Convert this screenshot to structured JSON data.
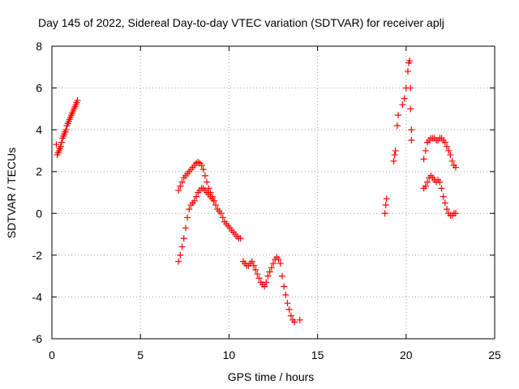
{
  "chart_data": {
    "type": "scatter",
    "title": "Day 145 of 2022, Sidereal Day-to-day VTEC variation (SDTVAR) for receiver aplj",
    "xlabel": "GPS time / hours",
    "ylabel": "SDTVAR / TECUs",
    "xlim": [
      0,
      25
    ],
    "ylim": [
      -6,
      8
    ],
    "xticks": [
      0,
      5,
      10,
      15,
      20,
      25
    ],
    "yticks": [
      -6,
      -4,
      -2,
      0,
      2,
      4,
      6,
      8
    ],
    "xtick_labels": [
      "0",
      "5",
      "10",
      "15",
      "20",
      "25"
    ],
    "ytick_labels": [
      "-6",
      "-4",
      "-2",
      "0",
      "2",
      "4",
      "6",
      "8"
    ],
    "grid": true,
    "marker": "+",
    "color": "#ff0000",
    "series": [
      {
        "name": "SDTVAR",
        "x": [
          0.25,
          0.3,
          0.35,
          0.4,
          0.45,
          0.5,
          0.55,
          0.6,
          0.65,
          0.7,
          0.75,
          0.8,
          0.85,
          0.9,
          0.95,
          1.0,
          1.05,
          1.1,
          1.15,
          1.2,
          1.25,
          1.3,
          1.35,
          1.4,
          1.45,
          7.15,
          7.25,
          7.35,
          7.45,
          7.55,
          7.65,
          7.75,
          7.85,
          7.95,
          8.05,
          8.15,
          8.25,
          8.35,
          8.45,
          8.55,
          8.65,
          8.75,
          8.85,
          8.95,
          9.05,
          9.15,
          9.25,
          9.35,
          9.45,
          9.55,
          9.65,
          9.75,
          9.85,
          9.95,
          10.05,
          10.15,
          10.25,
          10.35,
          10.45,
          10.55,
          10.65,
          7.15,
          7.25,
          7.35,
          7.45,
          7.55,
          7.65,
          7.75,
          7.85,
          7.95,
          8.05,
          8.15,
          8.25,
          8.35,
          8.45,
          8.55,
          8.65,
          8.75,
          8.85,
          8.95,
          9.05,
          9.15,
          10.8,
          10.9,
          11.0,
          11.1,
          11.2,
          11.3,
          11.4,
          11.5,
          11.6,
          11.7,
          11.8,
          11.9,
          12.0,
          12.1,
          12.2,
          12.3,
          12.4,
          12.5,
          12.6,
          12.7,
          12.8,
          12.9,
          13.0,
          13.1,
          13.2,
          13.3,
          13.4,
          13.5,
          13.6,
          13.7,
          14.0,
          18.8,
          18.85,
          18.9,
          19.3,
          19.35,
          19.4,
          19.5,
          19.55,
          19.8,
          19.9,
          20.0,
          20.1,
          20.15,
          20.2,
          20.25,
          20.3,
          20.25,
          20.3,
          21.0,
          21.1,
          21.2,
          21.3,
          21.4,
          21.5,
          21.6,
          21.7,
          21.8,
          21.9,
          22.0,
          22.1,
          22.2,
          22.3,
          22.4,
          22.5,
          22.6,
          22.7,
          22.8,
          21.0,
          21.1,
          21.2,
          21.3,
          21.4,
          21.5,
          21.6,
          21.7,
          21.8,
          21.9,
          22.0,
          22.1,
          22.2,
          22.3,
          22.4,
          22.5,
          22.6,
          22.7,
          22.8
        ],
        "y": [
          3.3,
          2.8,
          2.9,
          3.0,
          3.1,
          3.2,
          3.4,
          3.6,
          3.7,
          3.8,
          3.9,
          4.0,
          4.2,
          4.3,
          4.4,
          4.5,
          4.6,
          4.7,
          4.8,
          4.9,
          5.0,
          5.1,
          5.2,
          5.3,
          5.4,
          1.1,
          1.3,
          1.5,
          1.7,
          1.8,
          1.9,
          2.0,
          2.1,
          2.2,
          2.3,
          2.4,
          2.45,
          2.4,
          2.3,
          2.1,
          1.8,
          1.5,
          1.2,
          1.0,
          0.8,
          0.6,
          0.4,
          0.2,
          0.1,
          0.0,
          -0.2,
          -0.4,
          -0.5,
          -0.6,
          -0.7,
          -0.8,
          -0.9,
          -1.0,
          -1.1,
          -1.2,
          -1.2,
          -2.3,
          -2.0,
          -1.6,
          -1.2,
          -0.7,
          -0.2,
          0.2,
          0.4,
          0.5,
          0.6,
          0.8,
          1.0,
          1.1,
          1.2,
          1.2,
          1.1,
          1.0,
          0.9,
          0.8,
          0.7,
          0.6,
          -2.3,
          -2.4,
          -2.5,
          -2.5,
          -2.4,
          -2.3,
          -2.5,
          -2.7,
          -2.9,
          -3.1,
          -3.3,
          -3.4,
          -3.5,
          -3.3,
          -3.0,
          -2.8,
          -2.6,
          -2.4,
          -2.2,
          -2.1,
          -2.2,
          -2.4,
          -3.0,
          -3.5,
          -3.9,
          -4.3,
          -4.6,
          -4.9,
          -5.1,
          -5.2,
          -5.1,
          0.0,
          0.4,
          0.7,
          2.5,
          2.8,
          3.0,
          4.2,
          4.7,
          5.2,
          5.5,
          6.0,
          6.8,
          7.2,
          7.3,
          6.0,
          4.0,
          5.0,
          3.5,
          2.6,
          3.0,
          3.4,
          3.5,
          3.6,
          3.6,
          3.6,
          3.5,
          3.5,
          3.6,
          3.6,
          3.5,
          3.4,
          3.2,
          3.0,
          2.8,
          2.5,
          2.3,
          2.2,
          1.2,
          1.3,
          1.5,
          1.7,
          1.8,
          1.7,
          1.6,
          1.5,
          1.6,
          1.5,
          1.2,
          0.8,
          0.5,
          0.2,
          0.0,
          -0.1,
          -0.1,
          0.0,
          0.0
        ]
      }
    ]
  }
}
